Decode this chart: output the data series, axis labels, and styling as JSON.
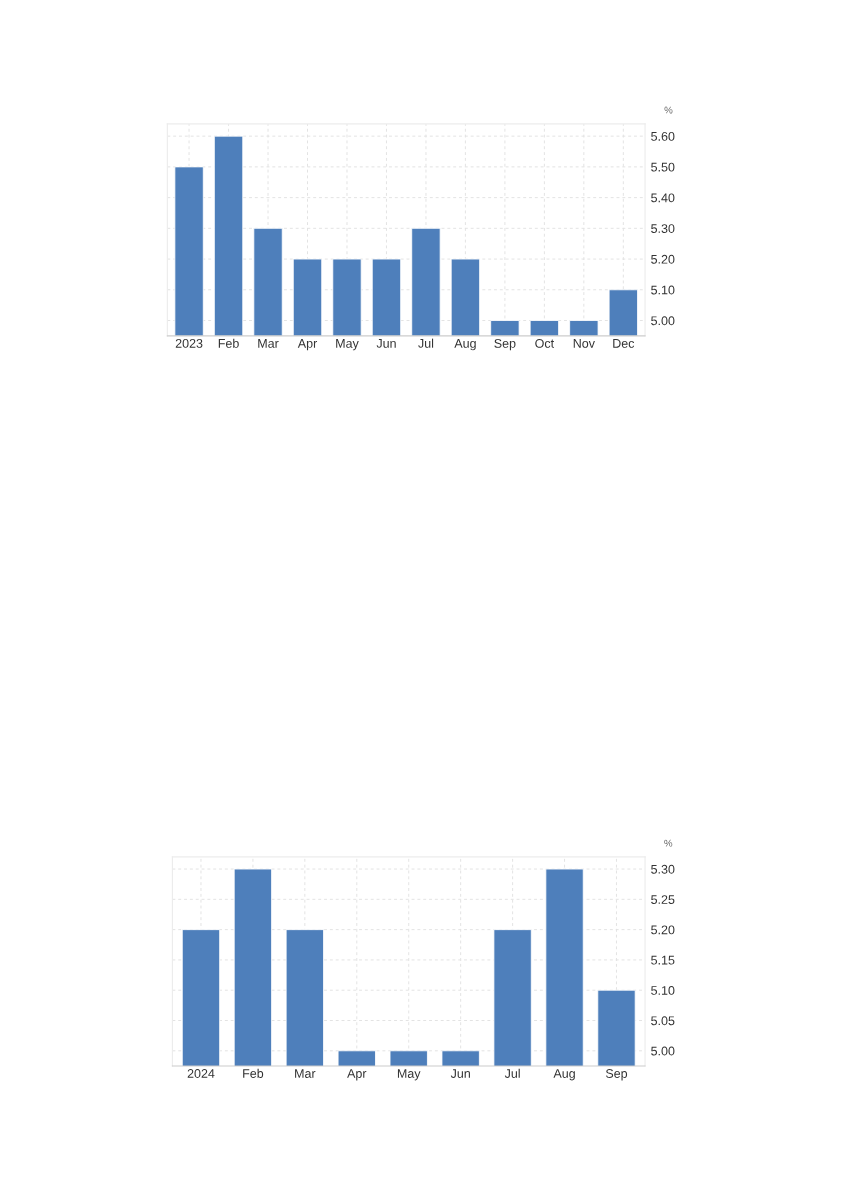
{
  "chart_data": [
    {
      "type": "bar",
      "ylabel": "%",
      "categories": [
        "2023",
        "Feb",
        "Mar",
        "Apr",
        "May",
        "Jun",
        "Jul",
        "Aug",
        "Sep",
        "Oct",
        "Nov",
        "Dec"
      ],
      "values": [
        5.5,
        5.6,
        5.3,
        5.2,
        5.2,
        5.2,
        5.3,
        5.2,
        5.0,
        5.0,
        5.0,
        5.1
      ],
      "color": "#4e7fbb",
      "ylim": [
        4.95,
        5.64
      ],
      "yticks": [
        {
          "value": 5.0,
          "label": "5.00"
        },
        {
          "value": 5.1,
          "label": "5.10"
        },
        {
          "value": 5.2,
          "label": "5.20"
        },
        {
          "value": 5.3,
          "label": "5.30"
        },
        {
          "value": 5.4,
          "label": "5.40"
        },
        {
          "value": 5.5,
          "label": "5.50"
        },
        {
          "value": 5.6,
          "label": "5.60"
        }
      ],
      "grid": true,
      "legend": false
    },
    {
      "type": "bar",
      "ylabel": "%",
      "categories": [
        "2024",
        "Feb",
        "Mar",
        "Apr",
        "May",
        "Jun",
        "Jul",
        "Aug",
        "Sep"
      ],
      "values": [
        5.2,
        5.3,
        5.2,
        5.0,
        5.0,
        5.0,
        5.2,
        5.3,
        5.1
      ],
      "color": "#4e7fbb",
      "ylim": [
        4.975,
        5.32
      ],
      "yticks": [
        {
          "value": 5.0,
          "label": "5.00"
        },
        {
          "value": 5.05,
          "label": "5.05"
        },
        {
          "value": 5.1,
          "label": "5.10"
        },
        {
          "value": 5.15,
          "label": "5.15"
        },
        {
          "value": 5.2,
          "label": "5.20"
        },
        {
          "value": 5.25,
          "label": "5.25"
        },
        {
          "value": 5.3,
          "label": "5.30"
        }
      ],
      "grid": true,
      "legend": false
    }
  ]
}
